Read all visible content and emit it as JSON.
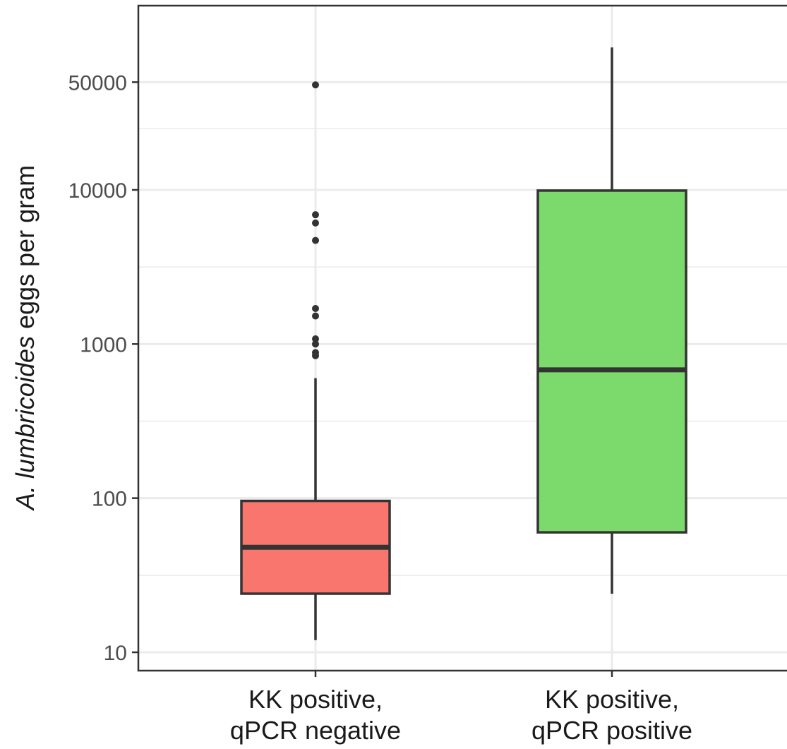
{
  "chart_data": {
    "type": "boxplot",
    "y_scale": "log10",
    "ylim": [
      8,
      90000
    ],
    "grid": true,
    "ylabel": {
      "italic": "A. lumbricoides",
      "rest": " eggs per gram"
    },
    "y_ticks": [
      10,
      100,
      1000,
      10000,
      50000
    ],
    "y_tick_labels": [
      "10",
      "100",
      "1000",
      "10000",
      "50000"
    ],
    "y_minor_ticks": [
      31.6,
      316,
      3162,
      25000
    ],
    "categories": [
      {
        "line1": "KK positive,",
        "line2": "qPCR negative"
      },
      {
        "line1": "KK positive,",
        "line2": "qPCR positive"
      }
    ],
    "series": [
      {
        "category": "KK positive, qPCR negative",
        "color": "#f8766d",
        "whisker_low": 12,
        "q1": 24,
        "median": 48,
        "q3": 96,
        "whisker_high": 600,
        "outliers": [
          48000,
          6900,
          6100,
          4700,
          1700,
          1520,
          1080,
          1000,
          880,
          840
        ]
      },
      {
        "category": "KK positive, qPCR positive",
        "color": "#7cd96c",
        "whisker_low": 24,
        "q1": 60,
        "median": 680,
        "q3": 9900,
        "whisker_high": 84000,
        "outliers": []
      }
    ]
  }
}
